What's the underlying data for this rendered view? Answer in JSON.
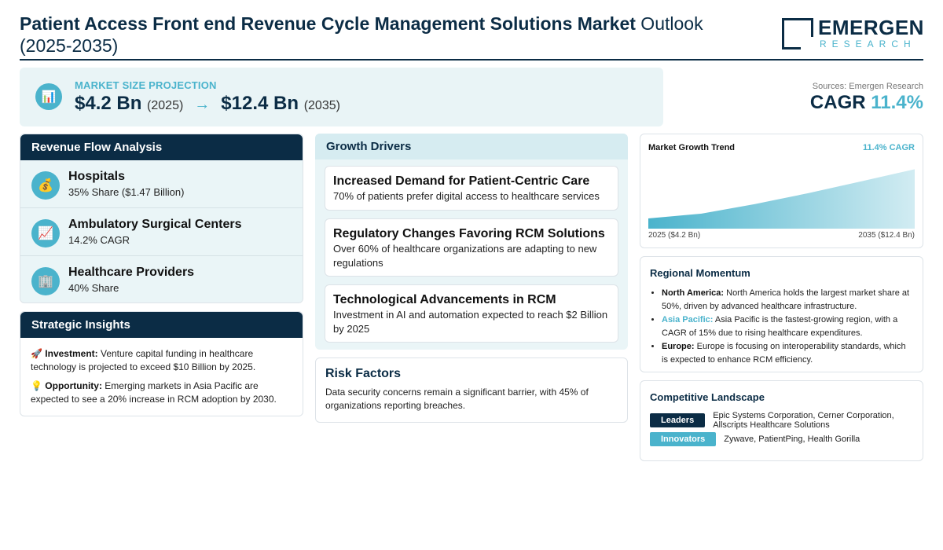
{
  "header": {
    "title_bold": "Patient Access Front end Revenue Cycle Management Solutions Market",
    "title_rest": " Outlook (2025-2035)",
    "logo_name": "EMERGEN",
    "logo_sub": "RESEARCH"
  },
  "projection": {
    "label": "MARKET SIZE PROJECTION",
    "icon": "bar-chart-icon",
    "start_value": "$4.2 Bn",
    "start_year": "(2025)",
    "arrow": "→",
    "end_value": "$12.4 Bn",
    "end_year": "(2035)"
  },
  "sources": "Sources: Emergen Research",
  "cagr": {
    "label": "CAGR",
    "value": "11.4%"
  },
  "revenue_flow": {
    "title": "Revenue Flow Analysis",
    "items": [
      {
        "title": "Hospitals",
        "sub": "35% Share ($1.47 Billion)",
        "icon": "money-bag-icon",
        "glyph": "💰"
      },
      {
        "title": "Ambulatory Surgical Centers",
        "sub": "14.2% CAGR",
        "icon": "trend-chart-icon",
        "glyph": "📈"
      },
      {
        "title": "Healthcare Providers",
        "sub": "40% Share",
        "icon": "building-icon",
        "glyph": "🏢"
      }
    ]
  },
  "insights": {
    "title": "Strategic Insights",
    "items": [
      {
        "icon": "rocket-icon",
        "glyph": "🚀",
        "label": "Investment:",
        "text": " Venture capital funding in healthcare technology is projected to exceed $10 Billion by 2025."
      },
      {
        "icon": "lightbulb-icon",
        "glyph": "💡",
        "label": "Opportunity:",
        "text": " Emerging markets in Asia Pacific are expected to see a 20% increase in RCM adoption by 2030."
      }
    ]
  },
  "drivers": {
    "title": "Growth Drivers",
    "items": [
      {
        "title": "Increased Demand for Patient-Centric Care",
        "sub": "70% of patients prefer digital access to healthcare services"
      },
      {
        "title": "Regulatory Changes Favoring RCM Solutions",
        "sub": "Over 60% of healthcare organizations are adapting to new regulations"
      },
      {
        "title": "Technological Advancements in RCM",
        "sub": "Investment in AI and automation expected to reach $2 Billion by 2025"
      }
    ]
  },
  "risk": {
    "title": "Risk Factors",
    "text": "Data security concerns remain a significant barrier, with 45% of organizations reporting breaches."
  },
  "chart_data": {
    "type": "area",
    "title": "Market Growth Trend",
    "annotation": "11.4% CAGR",
    "x": [
      2025,
      2027,
      2029,
      2031,
      2033,
      2035
    ],
    "x_labels": [
      "2025 ($4.2 Bn)",
      "2035 ($12.4 Bn)"
    ],
    "values": [
      4.2,
      5.0,
      6.6,
      8.4,
      10.4,
      12.4
    ],
    "ylim": [
      2.5,
      13.5
    ],
    "xlabel": "",
    "ylabel": "",
    "grid": false,
    "legend": "none",
    "color": "#4ab3cc"
  },
  "regional": {
    "title": "Regional Momentum",
    "items": [
      {
        "label": "North America:",
        "text": " North America holds the largest market share at 50%, driven by advanced healthcare infrastructure."
      },
      {
        "label": "Asia Pacific:",
        "text": " Asia Pacific is the fastest-growing region, with a CAGR of 15% due to rising healthcare expenditures."
      },
      {
        "label": "Europe:",
        "text": " Europe is focusing on interoperability standards, which is expected to enhance RCM efficiency."
      }
    ]
  },
  "competitive": {
    "title": "Competitive Landscape",
    "leaders_label": "Leaders",
    "leaders": "Epic Systems Corporation, Cerner Corporation, Allscripts Healthcare Solutions",
    "innovators_label": "Innovators",
    "innovators": "Zywave, PatientPing, Health Gorilla"
  },
  "colors": {
    "navy": "#0b2c45",
    "accent": "#4ab3cc",
    "panel": "#eaf5f7"
  }
}
